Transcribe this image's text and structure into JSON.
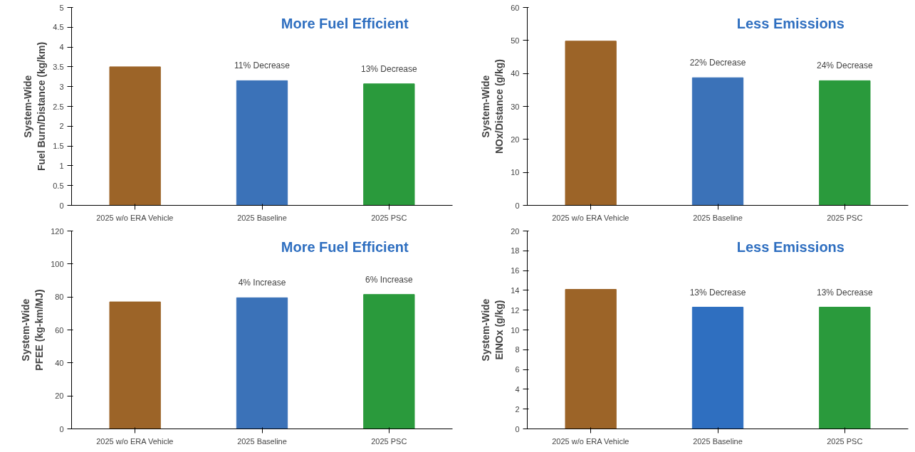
{
  "chart_data": [
    {
      "type": "bar",
      "ylabel": "System-Wide\nFuel Burn/Distance (kg/km)",
      "categories": [
        "2025 w/o ERA Vehicle",
        "2025 Baseline",
        "2025 PSC"
      ],
      "values": [
        3.5,
        3.15,
        3.07
      ],
      "colors": [
        "#9c6428",
        "#3b72b8",
        "#2a9a3c"
      ],
      "ylim": [
        0,
        5
      ],
      "yticks": [
        0,
        0.5,
        1,
        1.5,
        2,
        2.5,
        3,
        3.5,
        4,
        4.5,
        5
      ],
      "grid": false,
      "annotations": [
        "More Fuel Efficient",
        {
          "text": "11% Decrease",
          "x": "2025 Baseline",
          "y": 3.15
        },
        {
          "text": "13% Decrease",
          "x": "2025 PSC",
          "y": 3.07
        }
      ]
    },
    {
      "type": "bar",
      "ylabel": "System-Wide\nNOx/Distance (g/kg)",
      "categories": [
        "2025 w/o ERA Vehicle",
        "2025 Baseline",
        "2025 PSC"
      ],
      "values": [
        49.8,
        38.7,
        37.8
      ],
      "colors": [
        "#9c6428",
        "#3b72b8",
        "#2a9a3c"
      ],
      "ylim": [
        0,
        60
      ],
      "yticks": [
        0,
        10,
        20,
        30,
        40,
        50,
        60
      ],
      "grid": false,
      "annotations": [
        "Less Emissions",
        {
          "text": "22% Decrease",
          "x": "2025 Baseline",
          "y": 38.7
        },
        {
          "text": "24% Decrease",
          "x": "2025 PSC",
          "y": 37.8
        }
      ]
    },
    {
      "type": "bar",
      "ylabel": "System-Wide\nPFEE (kg-km/MJ)",
      "categories": [
        "2025 w/o ERA Vehicle",
        "2025 Baseline",
        "2025 PSC"
      ],
      "values": [
        77,
        79.5,
        81.5
      ],
      "colors": [
        "#9c6428",
        "#3b72b8",
        "#2a9a3c"
      ],
      "ylim": [
        0,
        120
      ],
      "yticks": [
        0,
        20,
        40,
        60,
        80,
        100,
        120
      ],
      "grid": false,
      "annotations": [
        "More Fuel Efficient",
        {
          "text": "4% Increase",
          "x": "2025 Baseline",
          "y": 79.5
        },
        {
          "text": "6% Increase",
          "x": "2025 PSC",
          "y": 81.5
        }
      ]
    },
    {
      "type": "bar",
      "ylabel": "System-Wide\nEINOx (g/kg)",
      "categories": [
        "2025 w/o ERA Vehicle",
        "2025 Baseline",
        "2025 PSC"
      ],
      "values": [
        14.1,
        12.3,
        12.3
      ],
      "colors": [
        "#9c6428",
        "#2f6fc0",
        "#2a9a3c"
      ],
      "ylim": [
        0,
        20
      ],
      "yticks": [
        0,
        2,
        4,
        6,
        8,
        10,
        12,
        14,
        16,
        18,
        20
      ],
      "grid": false,
      "annotations": [
        "Less Emissions",
        {
          "text": "13% Decrease",
          "x": "2025 Baseline",
          "y": 12.3
        },
        {
          "text": "13% Decrease",
          "x": "2025 PSC",
          "y": 12.3
        }
      ]
    }
  ]
}
